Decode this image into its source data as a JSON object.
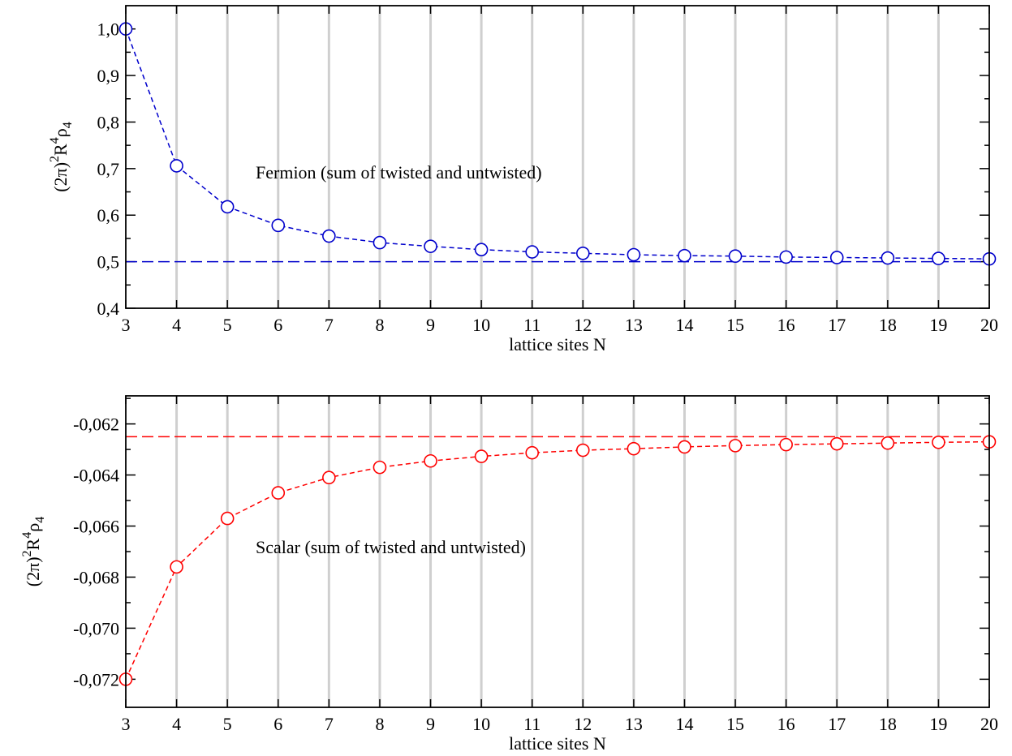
{
  "chart_data": [
    {
      "type": "line",
      "xlabel": "lattice sites N",
      "ylabel": {
        "base": "(2π)",
        "sup1": "2",
        "mid": "R",
        "sup2": "4",
        "rho": "ρ",
        "sub": "4"
      },
      "xlim": [
        3,
        20
      ],
      "ylim": [
        0.4,
        1.05
      ],
      "x_ticks": [
        "3",
        "4",
        "5",
        "6",
        "7",
        "8",
        "9",
        "10",
        "11",
        "12",
        "13",
        "14",
        "15",
        "16",
        "17",
        "18",
        "19",
        "20"
      ],
      "y_ticks": [
        {
          "value": 0.4,
          "label": "0,4"
        },
        {
          "value": 0.5,
          "label": "0,5"
        },
        {
          "value": 0.6,
          "label": "0,6"
        },
        {
          "value": 0.7,
          "label": "0,7"
        },
        {
          "value": 0.8,
          "label": "0,8"
        },
        {
          "value": 0.9,
          "label": "0,9"
        },
        {
          "value": 1.0,
          "label": "1,0"
        }
      ],
      "grid": "vertical",
      "annotation": "Fermion (sum of twisted and untwisted)",
      "color": "#0000cc",
      "asymptote": 0.5,
      "series": [
        {
          "x": [
            3,
            4,
            5,
            6,
            7,
            8,
            9,
            10,
            11,
            12,
            13,
            14,
            15,
            16,
            17,
            18,
            19,
            20
          ],
          "values": [
            1.0,
            0.706,
            0.618,
            0.578,
            0.555,
            0.541,
            0.533,
            0.526,
            0.521,
            0.518,
            0.515,
            0.513,
            0.512,
            0.51,
            0.509,
            0.508,
            0.507,
            0.506
          ]
        }
      ]
    },
    {
      "type": "line",
      "xlabel": "lattice sites N",
      "ylabel": {
        "base": "(2π)",
        "sup1": "2",
        "mid": "R",
        "sup2": "4",
        "rho": "ρ",
        "sub": "4"
      },
      "xlim": [
        3,
        20
      ],
      "ylim": [
        -0.0731,
        -0.0609
      ],
      "x_ticks": [
        "3",
        "4",
        "5",
        "6",
        "7",
        "8",
        "9",
        "10",
        "11",
        "12",
        "13",
        "14",
        "15",
        "16",
        "17",
        "18",
        "19",
        "20"
      ],
      "y_ticks": [
        {
          "value": -0.072,
          "label": "-0,072"
        },
        {
          "value": -0.07,
          "label": "-0,070"
        },
        {
          "value": -0.068,
          "label": "-0,068"
        },
        {
          "value": -0.066,
          "label": "-0,066"
        },
        {
          "value": -0.064,
          "label": "-0,064"
        },
        {
          "value": -0.062,
          "label": "-0,062"
        }
      ],
      "grid": "vertical",
      "annotation": "Scalar (sum of twisted and untwisted)",
      "color": "#ff0000",
      "asymptote": -0.0625,
      "series": [
        {
          "x": [
            3,
            4,
            5,
            6,
            7,
            8,
            9,
            10,
            11,
            12,
            13,
            14,
            15,
            16,
            17,
            18,
            19,
            20
          ],
          "values": [
            -0.072,
            -0.0676,
            -0.0657,
            -0.0647,
            -0.0641,
            -0.0637,
            -0.06345,
            -0.06327,
            -0.06313,
            -0.06303,
            -0.06297,
            -0.0629,
            -0.06285,
            -0.06281,
            -0.06278,
            -0.06275,
            -0.06272,
            -0.0627
          ]
        }
      ]
    }
  ]
}
